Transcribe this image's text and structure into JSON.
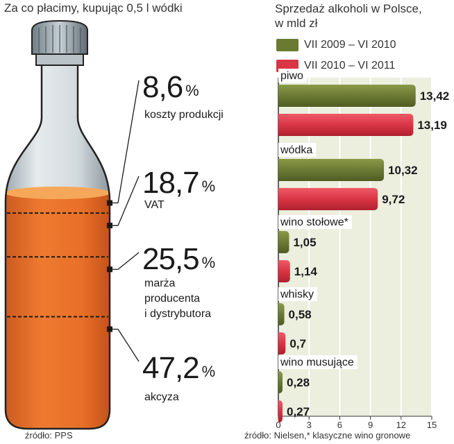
{
  "left": {
    "title": "Za co płacimy, kupując 0,5 l wódki",
    "source": "źródło:  PPS",
    "segments": [
      {
        "value": "8,6",
        "unit": "%",
        "label": [
          "koszty produkcji"
        ]
      },
      {
        "value": "18,7",
        "unit": "%",
        "label": [
          "VAT"
        ]
      },
      {
        "value": "25,5",
        "unit": "%",
        "label": [
          "marża",
          "producenta",
          "i dystrybutora"
        ]
      },
      {
        "value": "47,2",
        "unit": "%",
        "label": [
          "akcyza"
        ]
      }
    ]
  },
  "right": {
    "title_line1": "Sprzedaż alkoholi w Polsce,",
    "title_line2": "w mld zł",
    "source": "źródło:  Nielsen,* klasyczne wino gronowe"
  },
  "colors": {
    "series1": "#6b7a33",
    "series2": "#d93545",
    "liquid": "#e8702a",
    "chart_bg": "#eceede"
  },
  "chart_data": [
    {
      "type": "pie",
      "title": "Za co płacimy, kupując 0,5 l wódki",
      "categories": [
        "koszty produkcji",
        "VAT",
        "marża producenta i dystrybutora",
        "akcyza"
      ],
      "values": [
        8.6,
        18.7,
        25.5,
        47.2
      ],
      "unit": "%"
    },
    {
      "type": "bar",
      "orientation": "horizontal",
      "title": "Sprzedaż alkoholi w Polsce, w mld zł",
      "categories": [
        "piwo",
        "wódka",
        "wino stołowe*",
        "whisky",
        "wino musujące"
      ],
      "series": [
        {
          "name": "VII 2009 – VI 2010",
          "values": [
            13.42,
            10.32,
            1.05,
            0.58,
            0.28
          ],
          "labels": [
            "13,42",
            "10,32",
            "1,05",
            "0,58",
            "0,28"
          ]
        },
        {
          "name": "VII 2010 – VI 2011",
          "values": [
            13.19,
            9.72,
            1.14,
            0.7,
            0.27
          ],
          "labels": [
            "13,19",
            "9,72",
            "1,14",
            "0,7",
            "0,27"
          ]
        }
      ],
      "xlim": [
        0,
        15
      ],
      "xticks": [
        "0",
        "3",
        "6",
        "9",
        "12",
        "15"
      ],
      "grid": true
    }
  ]
}
